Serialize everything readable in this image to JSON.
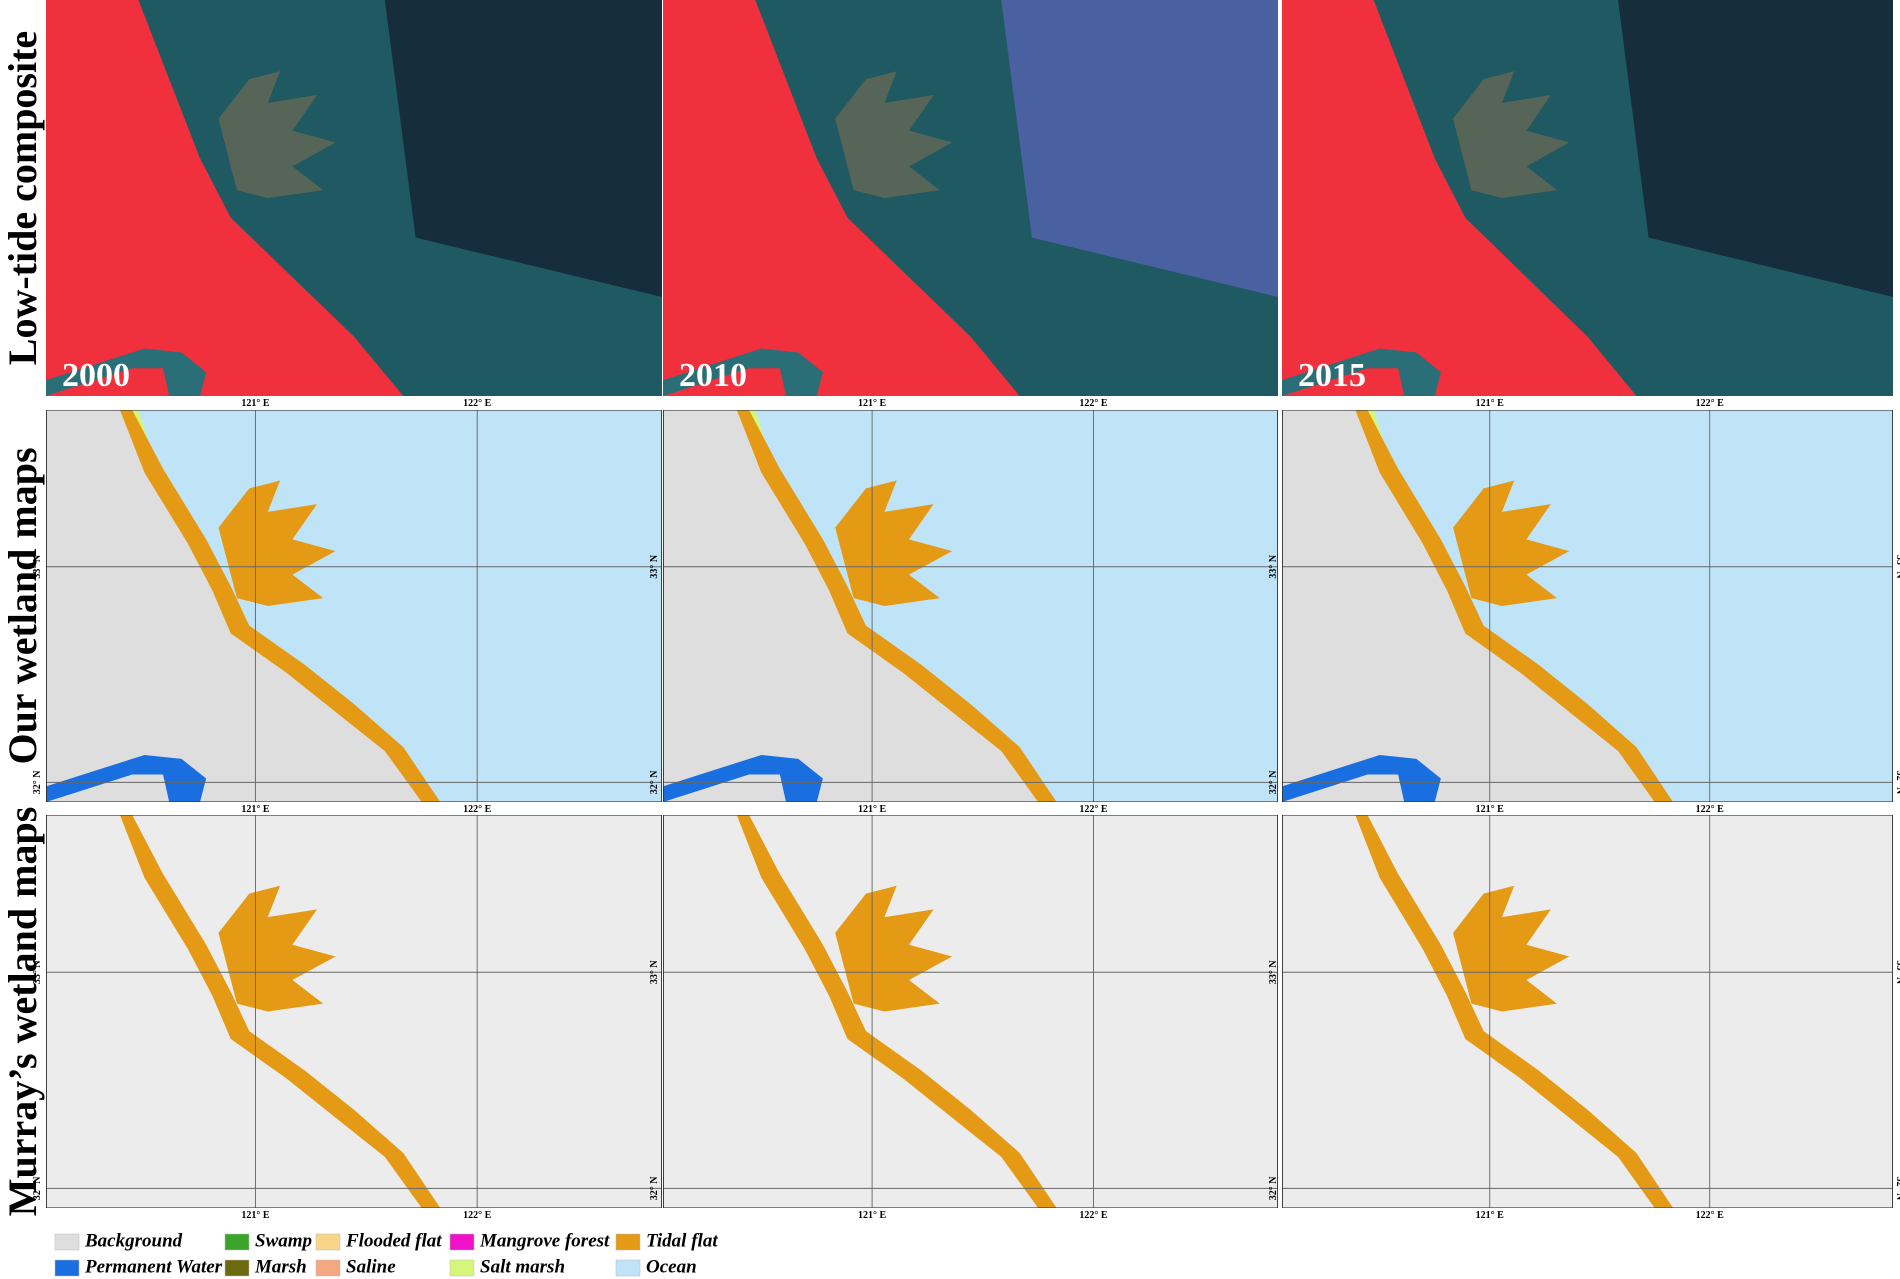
{
  "row_labels": [
    "Low-tide composite",
    "Our wetland maps",
    "Murray’s wetland maps"
  ],
  "years": [
    "2000",
    "2010",
    "2015"
  ],
  "axis_labels": {
    "lon": [
      "121° E",
      "122° E"
    ],
    "lat": [
      "33° N",
      "32° N"
    ]
  },
  "legend": [
    {
      "label": "Background",
      "color": "#dedede"
    },
    {
      "label": "Permanent Water",
      "color": "#1a6fe0"
    },
    {
      "label": "Swamp",
      "color": "#3aa52a"
    },
    {
      "label": "Marsh",
      "color": "#6b6a10"
    },
    {
      "label": "Flooded flat",
      "color": "#f9d58a"
    },
    {
      "label": "Saline",
      "color": "#f4a882"
    },
    {
      "label": "Mangrove forest",
      "color": "#f012c8"
    },
    {
      "label": "Salt marsh",
      "color": "#d4f77a"
    },
    {
      "label": "Tidal flat",
      "color": "#e59a15"
    },
    {
      "label": "Ocean",
      "color": "#bfe4f7"
    }
  ]
}
